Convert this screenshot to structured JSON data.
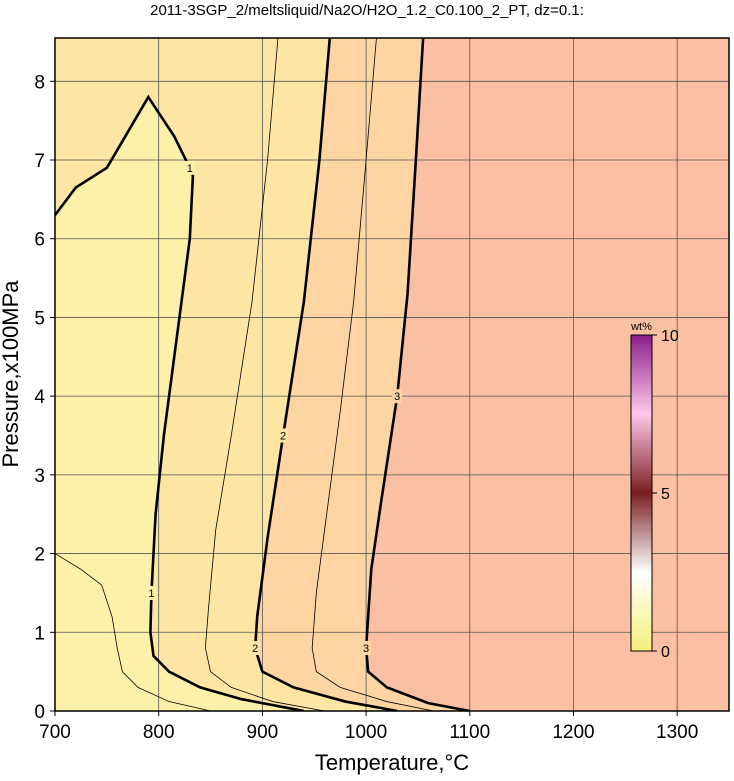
{
  "chart_data": {
    "type": "contour",
    "title": "2011-3SGP_2/meltsliquid/Na2O/H2O_1.2_C0.100_2_PT, dz=0.1:",
    "x_label": "Temperature,°C",
    "y_label": "Pressure,x100MPa",
    "xlim": [
      700,
      1350
    ],
    "ylim": [
      0,
      8.55
    ],
    "xticks": [
      700,
      800,
      900,
      1000,
      1100,
      1200,
      1300
    ],
    "yticks": [
      0,
      1,
      2,
      3,
      4,
      5,
      6,
      7,
      8
    ],
    "grid": true,
    "background": "#fbbfa3",
    "contours": [
      {
        "level": 3,
        "bold": true,
        "fill": "#fcd5a3",
        "x": [
          1055,
          1048,
          1040,
          1030,
          1015,
          1005,
          1000,
          1002,
          1020,
          1060,
          1100
        ],
        "y": [
          8.55,
          7.0,
          5.3,
          4.0,
          2.7,
          1.8,
          0.8,
          0.5,
          0.3,
          0.1,
          0
        ]
      },
      {
        "level": 2,
        "bold": true,
        "fill": "#fde6a4",
        "x": [
          965,
          955,
          940,
          920,
          905,
          895,
          893,
          900,
          930,
          980,
          1030
        ],
        "y": [
          8.55,
          7.0,
          5.2,
          3.5,
          2.2,
          1.2,
          0.8,
          0.5,
          0.3,
          0.12,
          0
        ]
      },
      {
        "level": 1,
        "bold": true,
        "fill": "#fdf0a8",
        "x": [
          700,
          720,
          750,
          790,
          815,
          830,
          833,
          830,
          820,
          805,
          797,
          793,
          792,
          795,
          810,
          840,
          880,
          920,
          940
        ],
        "y": [
          6.3,
          6.65,
          6.9,
          7.8,
          7.3,
          6.9,
          6.8,
          6.0,
          5.0,
          3.5,
          2.5,
          1.5,
          1.0,
          0.7,
          0.5,
          0.3,
          0.15,
          0.05,
          0
        ]
      },
      {
        "level": 1.5,
        "bold": false,
        "x": [
          915,
          905,
          890,
          870,
          855,
          848,
          845,
          850,
          870,
          910,
          960
        ],
        "y": [
          8.55,
          7.0,
          5.2,
          3.5,
          2.3,
          1.3,
          0.8,
          0.5,
          0.3,
          0.12,
          0
        ]
      },
      {
        "level": 2.5,
        "bold": false,
        "x": [
          1010,
          1000,
          988,
          975,
          962,
          952,
          948,
          952,
          975,
          1020,
          1065
        ],
        "y": [
          8.55,
          7.0,
          5.2,
          3.8,
          2.5,
          1.5,
          0.8,
          0.5,
          0.3,
          0.12,
          0
        ]
      },
      {
        "level": 0.5,
        "bold": false,
        "x": [
          700,
          725,
          745,
          755,
          760,
          765,
          780,
          810,
          850
        ],
        "y": [
          2.0,
          1.8,
          1.6,
          1.2,
          0.8,
          0.5,
          0.3,
          0.12,
          0
        ]
      }
    ],
    "colorbar": {
      "label": "wt%",
      "lim": [
        0,
        10
      ],
      "ticks": [
        0,
        5,
        10
      ],
      "colors": [
        "#f5f07a",
        "#ffffff",
        "#7a1f1f",
        "#ffc8ec",
        "#8a1f8a"
      ]
    }
  }
}
